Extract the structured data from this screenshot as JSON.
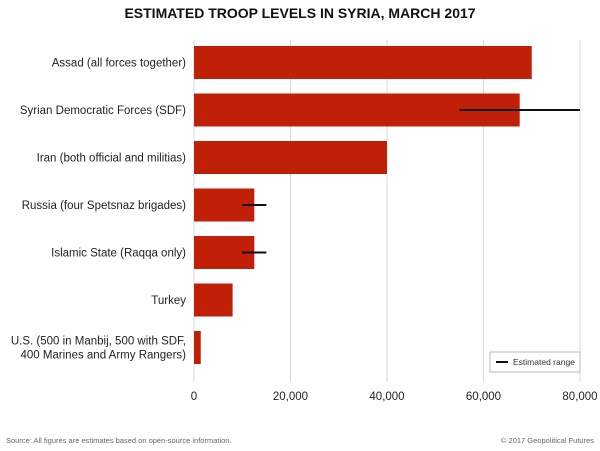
{
  "chart_data": {
    "type": "bar",
    "orientation": "horizontal",
    "title": "ESTIMATED TROOP LEVELS IN SYRIA, MARCH 2017",
    "categories": [
      [
        "Assad (all forces together)"
      ],
      [
        "Syrian Democratic Forces (SDF)"
      ],
      [
        "Iran (both official and militias)"
      ],
      [
        "Russia (four Spetsnaz brigades)"
      ],
      [
        "Islamic State (Raqqa only)"
      ],
      [
        "Turkey"
      ],
      [
        "U.S. (500 in Manbij, 500 with SDF,",
        "400 Marines and Army Rangers)"
      ]
    ],
    "values": [
      70000,
      67500,
      40000,
      12500,
      12500,
      8000,
      1400
    ],
    "estimated_range": [
      null,
      [
        55000,
        80000
      ],
      null,
      [
        10000,
        15000
      ],
      [
        10000,
        15000
      ],
      null,
      null
    ],
    "xlim": [
      0,
      80000
    ],
    "xticks": [
      0,
      20000,
      40000,
      60000,
      80000
    ],
    "xtick_labels": [
      "0",
      "20,000",
      "40,000",
      "60,000",
      "80,000"
    ],
    "grid": true,
    "legend": {
      "label": "Estimated range",
      "position": "bottom-right"
    },
    "colors": {
      "bar": "#c01f08",
      "range": "#111111",
      "grid": "#d9d9d9"
    }
  },
  "footer": {
    "source": "Source: All figures are estimates based on open-source information.",
    "credit": "© 2017 Geopolitical Futures"
  }
}
